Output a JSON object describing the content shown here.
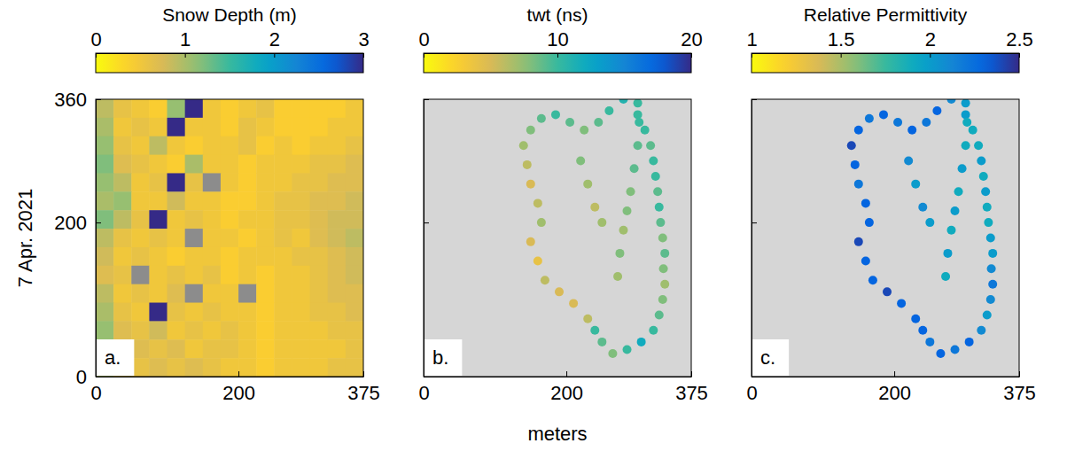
{
  "chart_data": [
    {
      "type": "heatmap",
      "title": "Snow Depth (m)",
      "ylabel": "7 Apr. 2021",
      "annotations": [
        "a."
      ],
      "xlim": [
        0,
        375
      ],
      "ylim": [
        0,
        360
      ],
      "xticks": [
        0,
        200,
        375
      ],
      "yticks": [
        0,
        200,
        360
      ],
      "colorbar": {
        "range": [
          0,
          3
        ],
        "ticks": [
          0,
          1,
          2,
          3
        ]
      },
      "x": [
        12.5,
        37.5,
        62.5,
        87.5,
        112.5,
        137.5,
        162.5,
        187.5,
        212.5,
        237.5,
        262.5,
        287.5,
        312.5,
        337.5,
        362.5
      ],
      "y": [
        348,
        324,
        300,
        276,
        252,
        228,
        204,
        180,
        156,
        132,
        108,
        84,
        60,
        36,
        12
      ],
      "cells": [
        [
          0.9,
          0.6,
          0.5,
          0.4,
          1.1,
          3,
          0.5,
          0.4,
          0.5,
          0.6,
          0.4,
          0.4,
          0.4,
          0.4,
          0.5
        ],
        [
          1.0,
          0.5,
          0.6,
          0.5,
          3,
          0.5,
          0.5,
          0.4,
          0.6,
          0.5,
          0.4,
          0.4,
          0.4,
          0.5,
          0.5
        ],
        [
          1.1,
          0.6,
          0.5,
          0.9,
          0.5,
          0.4,
          0.5,
          0.5,
          0.6,
          0.4,
          0.5,
          0.4,
          0.5,
          0.5,
          0.6
        ],
        [
          1.2,
          0.7,
          0.6,
          0.5,
          0.4,
          1.0,
          0.5,
          0.5,
          0.4,
          0.5,
          0.5,
          0.5,
          0.6,
          0.6,
          0.7
        ],
        [
          1.1,
          0.9,
          0.5,
          0.6,
          3,
          0.6,
          null,
          0.5,
          0.4,
          0.5,
          0.5,
          0.6,
          0.6,
          0.7,
          0.7
        ],
        [
          1.0,
          1.1,
          0.5,
          0.5,
          0.8,
          0.5,
          0.5,
          0.4,
          0.4,
          0.5,
          0.6,
          0.6,
          0.7,
          0.7,
          0.8
        ],
        [
          1.2,
          0.9,
          0.6,
          3,
          0.5,
          0.6,
          0.5,
          0.4,
          0.5,
          0.5,
          0.6,
          0.6,
          0.7,
          0.8,
          0.8
        ],
        [
          0.9,
          0.6,
          0.5,
          0.6,
          0.5,
          null,
          0.5,
          0.5,
          0.4,
          0.5,
          0.6,
          0.5,
          0.7,
          0.8,
          0.9
        ],
        [
          0.8,
          0.5,
          0.6,
          0.5,
          0.4,
          0.5,
          0.5,
          0.4,
          0.5,
          0.5,
          0.5,
          0.6,
          0.6,
          0.7,
          0.8
        ],
        [
          0.7,
          0.6,
          null,
          0.5,
          0.6,
          0.5,
          0.6,
          0.4,
          0.5,
          0.4,
          0.5,
          0.5,
          0.6,
          0.7,
          0.8
        ],
        [
          0.9,
          0.5,
          0.6,
          0.5,
          0.7,
          null,
          0.5,
          0.5,
          null,
          0.4,
          0.5,
          0.5,
          0.6,
          0.7,
          0.7
        ],
        [
          1.0,
          0.6,
          0.5,
          3,
          0.6,
          0.5,
          0.6,
          0.5,
          0.5,
          0.4,
          0.5,
          0.5,
          0.6,
          0.6,
          0.7
        ],
        [
          1.1,
          0.7,
          0.6,
          0.8,
          0.5,
          0.6,
          0.5,
          0.6,
          0.5,
          0.4,
          0.5,
          0.5,
          0.5,
          0.6,
          0.6
        ],
        [
          1.2,
          0.9,
          0.7,
          0.6,
          0.7,
          0.5,
          0.6,
          0.6,
          0.5,
          0.4,
          0.5,
          0.5,
          0.5,
          0.5,
          0.6
        ],
        [
          1.0,
          0.8,
          0.6,
          0.7,
          0.6,
          0.7,
          0.6,
          0.5,
          0.5,
          0.4,
          0.5,
          0.5,
          0.5,
          0.6,
          0.6
        ]
      ]
    },
    {
      "type": "scatter",
      "title": "twt (ns)",
      "xlabel": "meters",
      "annotations": [
        "b."
      ],
      "tick_labels": "x",
      "xlim": [
        0,
        375
      ],
      "ylim": [
        0,
        360
      ],
      "xticks": [
        0,
        200,
        375
      ],
      "yticks": [
        0,
        200,
        360
      ],
      "colorbar": {
        "range": [
          0,
          20
        ],
        "ticks": [
          0,
          10,
          20
        ]
      },
      "x": [
        280,
        300,
        310,
        318,
        322,
        325,
        328,
        330,
        332,
        335,
        338,
        336,
        338,
        335,
        330,
        322,
        305,
        285,
        265,
        250,
        240,
        300,
        302,
        300,
        295,
        290,
        285,
        280,
        275,
        272,
        230,
        210,
        190,
        170,
        160,
        150,
        165,
        160,
        150,
        145,
        140,
        150,
        165,
        185,
        205,
        225,
        245,
        260,
        220,
        230,
        240,
        250
      ],
      "y": [
        360,
        340,
        320,
        300,
        280,
        260,
        240,
        220,
        200,
        180,
        160,
        140,
        120,
        100,
        80,
        60,
        45,
        35,
        30,
        45,
        60,
        355,
        330,
        300,
        270,
        240,
        215,
        190,
        160,
        130,
        75,
        95,
        110,
        125,
        150,
        175,
        200,
        225,
        250,
        275,
        300,
        320,
        335,
        340,
        330,
        320,
        330,
        345,
        280,
        250,
        220,
        200
      ],
      "values": [
        11,
        10,
        10,
        9,
        10,
        10,
        9,
        10,
        9,
        8,
        9,
        8,
        7,
        8,
        9,
        10,
        12,
        10,
        8,
        9,
        10,
        10,
        10,
        9,
        9,
        8,
        8,
        7,
        8,
        7,
        6,
        5,
        5,
        6,
        4,
        5,
        7,
        6,
        5,
        6,
        7,
        8,
        9,
        10,
        9,
        8,
        9,
        10,
        8,
        7,
        6,
        7
      ]
    },
    {
      "type": "scatter",
      "title": "Relative Permittivity",
      "annotations": [
        "c."
      ],
      "tick_labels": "x",
      "xlim": [
        0,
        375
      ],
      "ylim": [
        0,
        360
      ],
      "xticks": [
        0,
        200,
        375
      ],
      "yticks": [
        0,
        200,
        360
      ],
      "colorbar": {
        "range": [
          1,
          2.5
        ],
        "ticks": [
          1,
          1.5,
          2,
          2.5
        ]
      },
      "x": [
        280,
        300,
        310,
        318,
        322,
        325,
        328,
        330,
        332,
        335,
        338,
        336,
        338,
        335,
        330,
        322,
        305,
        285,
        265,
        250,
        240,
        300,
        302,
        300,
        295,
        290,
        285,
        280,
        275,
        272,
        230,
        210,
        190,
        170,
        160,
        150,
        165,
        160,
        150,
        145,
        140,
        150,
        165,
        185,
        205,
        225,
        245,
        260,
        220,
        230,
        240,
        250
      ],
      "y": [
        360,
        340,
        320,
        300,
        280,
        260,
        240,
        220,
        200,
        180,
        160,
        140,
        120,
        100,
        80,
        60,
        45,
        35,
        30,
        45,
        60,
        355,
        330,
        300,
        270,
        240,
        215,
        190,
        160,
        130,
        75,
        95,
        110,
        125,
        150,
        175,
        200,
        225,
        250,
        275,
        300,
        320,
        335,
        340,
        330,
        320,
        330,
        345,
        280,
        250,
        220,
        200
      ],
      "values": [
        2.1,
        2.0,
        1.9,
        1.9,
        2.0,
        1.9,
        2.0,
        1.9,
        1.9,
        2.0,
        2.0,
        2.1,
        2.2,
        2.1,
        2.0,
        2.1,
        2.3,
        2.2,
        2.3,
        2.2,
        2.3,
        2.0,
        1.9,
        1.9,
        2.0,
        1.9,
        2.0,
        1.9,
        2.0,
        1.9,
        2.3,
        2.3,
        2.4,
        2.3,
        2.3,
        2.4,
        2.3,
        2.3,
        2.2,
        2.3,
        2.4,
        2.3,
        2.2,
        2.3,
        2.2,
        2.3,
        2.2,
        2.3,
        2.1,
        2.0,
        2.1,
        2.0
      ]
    }
  ]
}
